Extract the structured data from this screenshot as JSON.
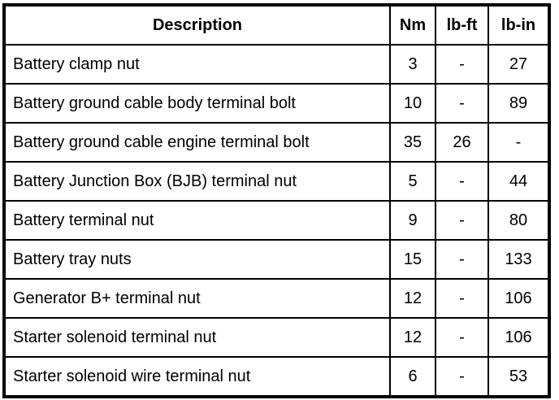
{
  "headers": {
    "description": "Description",
    "nm": "Nm",
    "lbft": "lb-ft",
    "lbin": "lb-in"
  },
  "rows": [
    {
      "description": "Battery clamp nut",
      "nm": "3",
      "lbft": "-",
      "lbin": "27"
    },
    {
      "description": "Battery ground cable body terminal bolt",
      "nm": "10",
      "lbft": "-",
      "lbin": "89"
    },
    {
      "description": "Battery ground cable engine terminal bolt",
      "nm": "35",
      "lbft": "26",
      "lbin": "-"
    },
    {
      "description": "Battery Junction Box (BJB) terminal nut",
      "nm": "5",
      "lbft": "-",
      "lbin": "44"
    },
    {
      "description": "Battery terminal nut",
      "nm": "9",
      "lbft": "-",
      "lbin": "80"
    },
    {
      "description": "Battery tray nuts",
      "nm": "15",
      "lbft": "-",
      "lbin": "133"
    },
    {
      "description": "Generator B+ terminal nut",
      "nm": "12",
      "lbft": "-",
      "lbin": "106"
    },
    {
      "description": "Starter solenoid terminal nut",
      "nm": "12",
      "lbft": "-",
      "lbin": "106"
    },
    {
      "description": "Starter solenoid wire terminal nut",
      "nm": "6",
      "lbft": "-",
      "lbin": "53"
    }
  ]
}
